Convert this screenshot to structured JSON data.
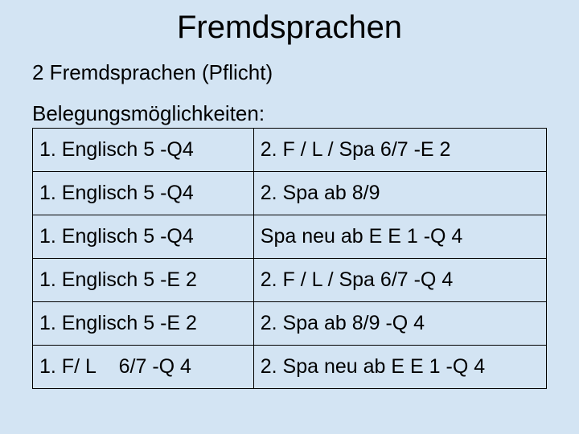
{
  "background_color": "#d3e4f3",
  "text_color": "#000000",
  "border_color": "#000000",
  "title": {
    "text": "Fremdsprachen",
    "fontsize": 40
  },
  "subtitle": {
    "text": "2 Fremdsprachen (Pflicht)",
    "fontsize": 26
  },
  "section_label": {
    "text": "Belegungsmöglichkeiten:",
    "fontsize": 26
  },
  "table": {
    "cell_fontsize": 25,
    "rows": [
      {
        "left": "1. Englisch 5 -Q4",
        "right": "2. F / L / Spa 6/7 -E 2"
      },
      {
        "left": "1. Englisch 5 -Q4",
        "right": "2. Spa ab 8/9"
      },
      {
        "left": "1. Englisch 5 -Q4",
        "right": "Spa neu ab E E 1 -Q 4"
      },
      {
        "left": "1. Englisch 5 -E 2",
        "right": "2. F / L / Spa 6/7 -Q 4"
      },
      {
        "left": "1. Englisch 5 -E 2",
        "right": "2. Spa ab 8/9 -Q 4"
      },
      {
        "left": "1. F/ L    6/7 -Q 4",
        "right": "2. Spa neu ab E E 1 -Q 4"
      }
    ]
  }
}
